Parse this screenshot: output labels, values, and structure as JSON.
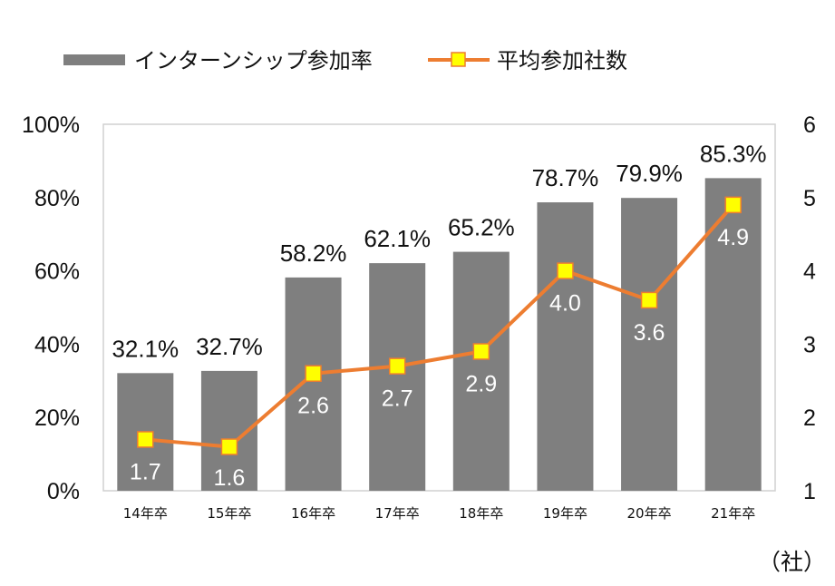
{
  "chart_data": {
    "type": "bar",
    "categories": [
      "14年卒",
      "15年卒",
      "16年卒",
      "17年卒",
      "18年卒",
      "19年卒",
      "20年卒",
      "21年卒"
    ],
    "series": [
      {
        "name": "インターンシップ参加率",
        "type": "bar",
        "axis": "left",
        "values": [
          32.1,
          32.7,
          58.2,
          62.1,
          65.2,
          78.7,
          79.9,
          85.3
        ],
        "labels": [
          "32.1%",
          "32.7%",
          "58.2%",
          "62.1%",
          "65.2%",
          "78.7%",
          "79.9%",
          "85.3%"
        ],
        "color": "#7f7f7f"
      },
      {
        "name": "平均参加社数",
        "type": "line",
        "axis": "right",
        "values": [
          1.7,
          1.6,
          2.6,
          2.7,
          2.9,
          4.0,
          3.6,
          4.9
        ],
        "labels": [
          "1.7",
          "1.6",
          "2.6",
          "2.7",
          "2.9",
          "4.0",
          "3.6",
          "4.9"
        ],
        "color": "#ed7d31",
        "marker_color": "#ffff00"
      }
    ],
    "y_left": {
      "ylim": [
        0,
        100
      ],
      "ticks": [
        0,
        20,
        40,
        60,
        80,
        100
      ],
      "tick_labels": [
        "0%",
        "20%",
        "40%",
        "60%",
        "80%",
        "100%"
      ]
    },
    "y_right": {
      "ylim": [
        1,
        6
      ],
      "ticks": [
        1,
        2,
        3,
        4,
        5,
        6
      ],
      "tick_labels": [
        "1",
        "2",
        "3",
        "4",
        "5",
        "6"
      ],
      "unit": "（社）"
    },
    "grid": false,
    "legend": "top-left"
  }
}
